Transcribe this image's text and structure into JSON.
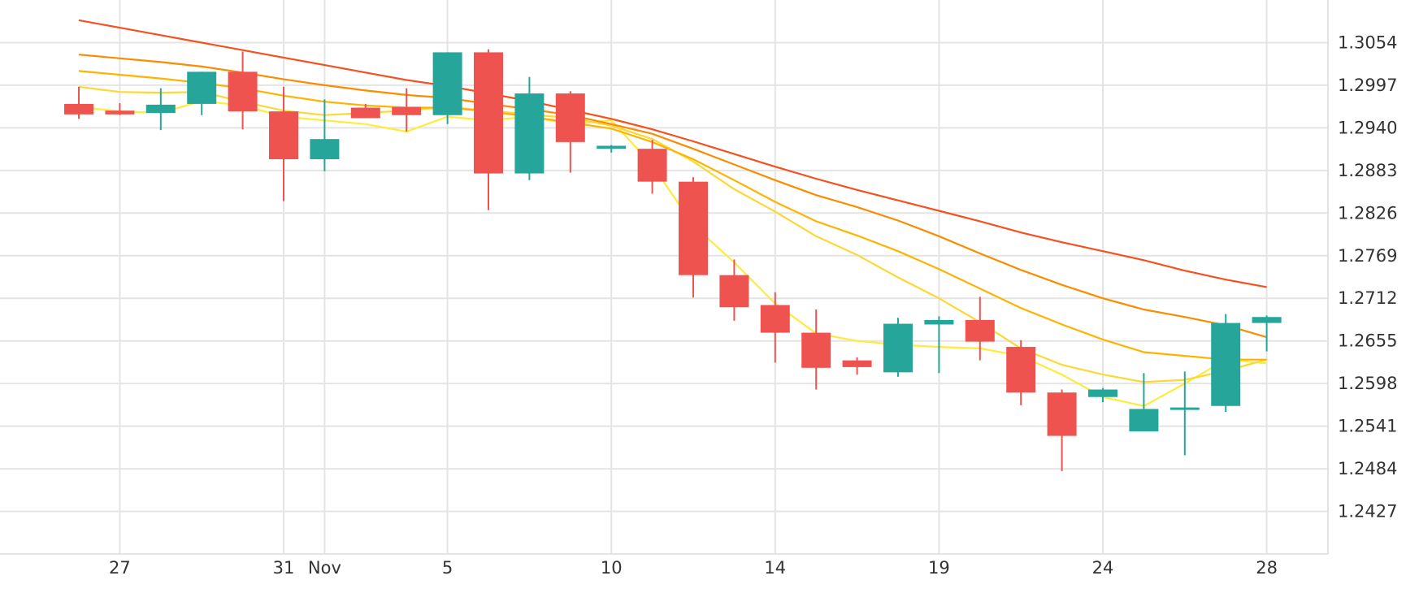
{
  "chart_data": {
    "type": "candlestick",
    "title": "",
    "xlabel": "",
    "ylabel": "",
    "ylim": [
      1.237,
      1.3111
    ],
    "y_ticks": [
      "1.3054",
      "1.2997",
      "1.2940",
      "1.2883",
      "1.2826",
      "1.2769",
      "1.2712",
      "1.2655",
      "1.2598",
      "1.2541",
      "1.2484",
      "1.2427"
    ],
    "x_ticks": [
      {
        "date": "Oct 27",
        "label": "27"
      },
      {
        "date": "Oct 31",
        "label": "31"
      },
      {
        "date": "Nov 1",
        "label": "Nov"
      },
      {
        "date": "Nov 5",
        "label": "5"
      },
      {
        "date": "Nov 10",
        "label": "10"
      },
      {
        "date": "Nov 14",
        "label": "14"
      },
      {
        "date": "Nov 19",
        "label": "19"
      },
      {
        "date": "Nov 24",
        "label": "24"
      },
      {
        "date": "Nov 28",
        "label": "28"
      }
    ],
    "grid": true,
    "up_color": "#26a69a",
    "down_color": "#ef5350",
    "candles": [
      {
        "date": "Oct 26",
        "open": 1.2972,
        "high": 1.2995,
        "low": 1.2952,
        "close": 1.2958
      },
      {
        "date": "Oct 27",
        "open": 1.2963,
        "high": 1.2973,
        "low": 1.2957,
        "close": 1.2958
      },
      {
        "date": "Oct 28",
        "open": 1.296,
        "high": 1.2993,
        "low": 1.2937,
        "close": 1.2971
      },
      {
        "date": "Oct 29",
        "open": 1.2972,
        "high": 1.3015,
        "low": 1.2957,
        "close": 1.3015
      },
      {
        "date": "Oct 30",
        "open": 1.3015,
        "high": 1.3042,
        "low": 1.2938,
        "close": 1.2962
      },
      {
        "date": "Oct 31",
        "open": 1.2962,
        "high": 1.2995,
        "low": 1.2842,
        "close": 1.2898
      },
      {
        "date": "Nov 1",
        "open": 1.2898,
        "high": 1.2978,
        "low": 1.2882,
        "close": 1.2925
      },
      {
        "date": "Nov 2",
        "open": 1.2967,
        "high": 1.2972,
        "low": 1.2953,
        "close": 1.2953
      },
      {
        "date": "Nov 3",
        "open": 1.2968,
        "high": 1.2993,
        "low": 1.2935,
        "close": 1.2957
      },
      {
        "date": "Nov 5",
        "open": 1.2957,
        "high": 1.3041,
        "low": 1.2945,
        "close": 1.3041
      },
      {
        "date": "Nov 6",
        "open": 1.3041,
        "high": 1.3045,
        "low": 1.283,
        "close": 1.2879
      },
      {
        "date": "Nov 7",
        "open": 1.2879,
        "high": 1.3008,
        "low": 1.287,
        "close": 1.2986
      },
      {
        "date": "Nov 8",
        "open": 1.2986,
        "high": 1.2989,
        "low": 1.288,
        "close": 1.2921
      },
      {
        "date": "Nov 10",
        "open": 1.2912,
        "high": 1.2917,
        "low": 1.2907,
        "close": 1.2916
      },
      {
        "date": "Nov 11",
        "open": 1.2912,
        "high": 1.2924,
        "low": 1.2852,
        "close": 1.2868
      },
      {
        "date": "Nov 12",
        "open": 1.2868,
        "high": 1.2874,
        "low": 1.2713,
        "close": 1.2743
      },
      {
        "date": "Nov 13",
        "open": 1.2743,
        "high": 1.2764,
        "low": 1.2682,
        "close": 1.27
      },
      {
        "date": "Nov 14",
        "open": 1.2703,
        "high": 1.272,
        "low": 1.2626,
        "close": 1.2666
      },
      {
        "date": "Nov 15",
        "open": 1.2666,
        "high": 1.2697,
        "low": 1.259,
        "close": 1.2619
      },
      {
        "date": "Nov 16",
        "open": 1.2629,
        "high": 1.2633,
        "low": 1.261,
        "close": 1.262
      },
      {
        "date": "Nov 18",
        "open": 1.2613,
        "high": 1.2686,
        "low": 1.2607,
        "close": 1.2678
      },
      {
        "date": "Nov 19",
        "open": 1.2677,
        "high": 1.2688,
        "low": 1.2612,
        "close": 1.2683
      },
      {
        "date": "Nov 20",
        "open": 1.2683,
        "high": 1.2714,
        "low": 1.2629,
        "close": 1.2654
      },
      {
        "date": "Nov 21",
        "open": 1.2647,
        "high": 1.2656,
        "low": 1.2569,
        "close": 1.2586
      },
      {
        "date": "Nov 22",
        "open": 1.2586,
        "high": 1.259,
        "low": 1.2481,
        "close": 1.2528
      },
      {
        "date": "Nov 24",
        "open": 1.258,
        "high": 1.2592,
        "low": 1.2573,
        "close": 1.259
      },
      {
        "date": "Nov 25",
        "open": 1.2534,
        "high": 1.2612,
        "low": 1.2534,
        "close": 1.2564
      },
      {
        "date": "Nov 26",
        "open": 1.2565,
        "high": 1.2614,
        "low": 1.2502,
        "close": 1.2566
      },
      {
        "date": "Nov 27",
        "open": 1.2568,
        "high": 1.2691,
        "low": 1.256,
        "close": 1.2679
      },
      {
        "date": "Nov 28",
        "open": 1.2679,
        "high": 1.2689,
        "low": 1.2641,
        "close": 1.2687
      }
    ],
    "series": [
      {
        "color": "#ffeb3b",
        "values": [
          1.2968,
          1.2962,
          1.296,
          1.2976,
          1.297,
          1.2955,
          1.295,
          1.2945,
          1.2935,
          1.2955,
          1.295,
          1.2955,
          1.2945,
          1.295,
          1.289,
          1.281,
          1.276,
          1.2705,
          1.2665,
          1.2655,
          1.265,
          1.2647,
          1.2645,
          1.2635,
          1.261,
          1.258,
          1.2568,
          1.2598,
          1.263,
          1.2625
        ]
      },
      {
        "color": "#fdd835",
        "values": [
          1.2995,
          1.2988,
          1.2987,
          1.2988,
          1.2975,
          1.2963,
          1.2957,
          1.296,
          1.2963,
          1.2968,
          1.2963,
          1.2958,
          1.2953,
          1.2943,
          1.2925,
          1.2895,
          1.2858,
          1.2828,
          1.2795,
          1.277,
          1.274,
          1.2712,
          1.268,
          1.2645,
          1.2623,
          1.261,
          1.26,
          1.2603,
          1.2615,
          1.263
        ]
      },
      {
        "color": "#ffb300",
        "values": [
          1.3016,
          1.3011,
          1.3006,
          1.3,
          1.2993,
          1.2983,
          1.2975,
          1.297,
          1.2967,
          1.2967,
          1.2962,
          1.2955,
          1.2947,
          1.2939,
          1.2921,
          1.2898,
          1.287,
          1.2841,
          1.2815,
          1.2796,
          1.2775,
          1.2751,
          1.2725,
          1.2699,
          1.2677,
          1.2657,
          1.264,
          1.2635,
          1.263,
          1.263
        ]
      },
      {
        "color": "#fb8c00",
        "values": [
          1.3038,
          1.3033,
          1.3028,
          1.3022,
          1.3014,
          1.3005,
          1.2997,
          1.299,
          1.2984,
          1.298,
          1.2972,
          1.2965,
          1.2957,
          1.2945,
          1.2932,
          1.2912,
          1.2891,
          1.287,
          1.285,
          1.2834,
          1.2816,
          1.2795,
          1.2772,
          1.275,
          1.273,
          1.2712,
          1.2697,
          1.2687,
          1.2676,
          1.266
        ]
      },
      {
        "color": "#f4511e",
        "values": [
          1.3084,
          1.3074,
          1.3064,
          1.3054,
          1.3044,
          1.3034,
          1.3024,
          1.3014,
          1.3004,
          1.2996,
          1.2986,
          1.2976,
          1.2964,
          1.2952,
          1.2938,
          1.2922,
          1.2905,
          1.2888,
          1.2872,
          1.2857,
          1.2843,
          1.2829,
          1.2815,
          1.28,
          1.2787,
          1.2775,
          1.2763,
          1.2749,
          1.2737,
          1.2727
        ]
      }
    ]
  }
}
